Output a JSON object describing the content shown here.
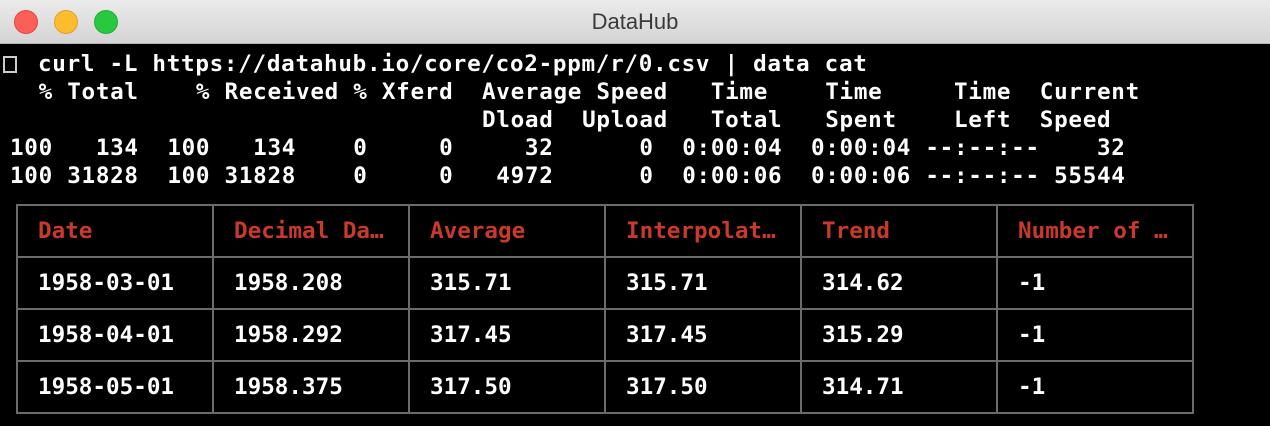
{
  "window": {
    "title": "DataHub"
  },
  "terminal": {
    "command": "curl -L https://datahub.io/core/co2-ppm/r/0.csv | data cat",
    "curl_header_1": "  % Total    % Received % Xferd  Average Speed   Time    Time     Time  Current",
    "curl_header_2": "                                 Dload  Upload   Total   Spent    Left  Speed",
    "curl_progress_1": "100   134  100   134    0     0     32      0  0:00:04  0:00:04 --:--:--    32",
    "curl_progress_2": "100 31828  100 31828    0     0   4972      0  0:00:06  0:00:06 --:--:-- 55544"
  },
  "table": {
    "headers": [
      "Date",
      "Decimal Da…",
      "Average",
      "Interpolat…",
      "Trend",
      "Number of …"
    ],
    "rows": [
      [
        "1958-03-01",
        "1958.208",
        "315.71",
        "315.71",
        "314.62",
        "-1"
      ],
      [
        "1958-04-01",
        "1958.292",
        "317.45",
        "317.45",
        "315.29",
        "-1"
      ],
      [
        "1958-05-01",
        "1958.375",
        "317.50",
        "317.50",
        "314.71",
        "-1"
      ]
    ]
  },
  "colors": {
    "header_text": "#c9392c",
    "cell_text": "#ffffff",
    "border": "#6b6b6b",
    "background": "#000000"
  },
  "icons": {
    "close": "close-traffic-light-icon",
    "minimize": "minimize-traffic-light-icon",
    "maximize": "maximize-traffic-light-icon"
  }
}
